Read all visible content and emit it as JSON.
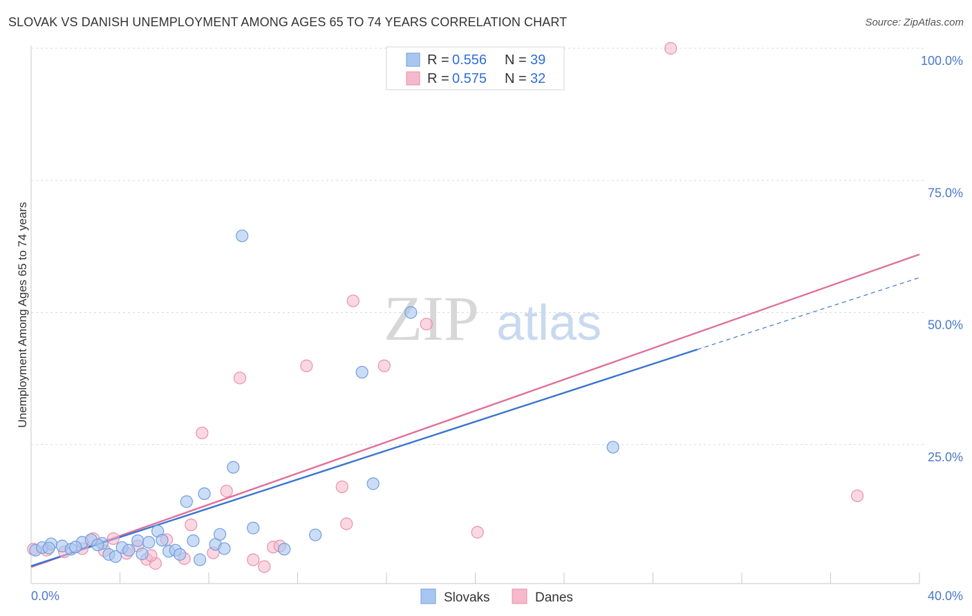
{
  "header": {
    "title": "SLOVAK VS DANISH UNEMPLOYMENT AMONG AGES 65 TO 74 YEARS CORRELATION CHART",
    "source": "Source: ZipAtlas.com"
  },
  "watermark": {
    "zip": "ZIP",
    "atlas": "atlas"
  },
  "colors": {
    "slovaks_fill": "#a9c6f0",
    "slovaks_stroke": "#6f9ddf",
    "slovaks_line": "#3a74d0",
    "danes_fill": "#f6b8cb",
    "danes_stroke": "#ea8fab",
    "danes_line": "#e0709a",
    "grid": "#d9d9d9",
    "tick_label": "#4a78c8"
  },
  "legend": {
    "rows": [
      {
        "r_label": "R =",
        "r_value": "0.556",
        "n_label": "N =",
        "n_value": "39"
      },
      {
        "r_label": "R =",
        "r_value": "0.575",
        "n_label": "N =",
        "n_value": "32"
      }
    ]
  },
  "chart_data": {
    "type": "scatter",
    "title": "SLOVAK VS DANISH UNEMPLOYMENT AMONG AGES 65 TO 74 YEARS CORRELATION CHART",
    "xlabel": "",
    "ylabel": "Unemployment Among Ages 65 to 74 years",
    "xlim": [
      0,
      40
    ],
    "ylim": [
      0,
      100
    ],
    "x_tick_labels": [
      "0.0%",
      "40.0%"
    ],
    "y_ticks": [
      25,
      50,
      75,
      100
    ],
    "y_tick_labels": [
      "25.0%",
      "50.0%",
      "75.0%",
      "100.0%"
    ],
    "grid": true,
    "legend_position": "top-center",
    "series": [
      {
        "name": "Slovaks",
        "r": 0.556,
        "n": 39,
        "trend": {
          "x0": 0,
          "y0": 2.0,
          "x1": 30,
          "y1": 43.0,
          "dashed_to_x": 40,
          "dashed_to_y": 56.6
        },
        "points": [
          [
            0.2,
            5.0
          ],
          [
            0.5,
            5.5
          ],
          [
            0.9,
            6.2
          ],
          [
            1.4,
            5.8
          ],
          [
            1.8,
            5.2
          ],
          [
            2.3,
            6.5
          ],
          [
            2.7,
            7.0
          ],
          [
            3.2,
            6.3
          ],
          [
            3.5,
            4.2
          ],
          [
            3.8,
            3.8
          ],
          [
            4.1,
            5.5
          ],
          [
            4.4,
            5.0
          ],
          [
            4.8,
            6.8
          ],
          [
            5.0,
            4.3
          ],
          [
            5.3,
            6.5
          ],
          [
            5.7,
            8.6
          ],
          [
            5.9,
            6.9
          ],
          [
            6.2,
            4.8
          ],
          [
            6.5,
            5.0
          ],
          [
            6.7,
            4.2
          ],
          [
            7.0,
            14.2
          ],
          [
            7.3,
            6.8
          ],
          [
            7.6,
            3.2
          ],
          [
            7.8,
            15.7
          ],
          [
            8.3,
            6.1
          ],
          [
            8.5,
            8.0
          ],
          [
            8.7,
            5.3
          ],
          [
            9.1,
            20.7
          ],
          [
            9.5,
            64.5
          ],
          [
            10.0,
            9.2
          ],
          [
            11.4,
            5.2
          ],
          [
            12.8,
            7.9
          ],
          [
            14.9,
            38.7
          ],
          [
            15.4,
            17.6
          ],
          [
            17.1,
            50.0
          ],
          [
            26.2,
            24.5
          ],
          [
            0.8,
            5.4
          ],
          [
            2.0,
            5.6
          ],
          [
            3.0,
            6.0
          ]
        ]
      },
      {
        "name": "Danes",
        "r": 0.575,
        "n": 32,
        "trend": {
          "x0": 0,
          "y0": 1.8,
          "x1": 40,
          "y1": 61.0
        },
        "points": [
          [
            0.1,
            5.2
          ],
          [
            0.7,
            5.0
          ],
          [
            1.5,
            4.7
          ],
          [
            2.3,
            5.3
          ],
          [
            2.8,
            7.2
          ],
          [
            3.3,
            4.9
          ],
          [
            3.7,
            7.2
          ],
          [
            4.3,
            4.4
          ],
          [
            4.8,
            5.8
          ],
          [
            5.2,
            3.3
          ],
          [
            5.6,
            2.5
          ],
          [
            6.1,
            7.0
          ],
          [
            6.9,
            3.4
          ],
          [
            7.2,
            9.8
          ],
          [
            7.7,
            27.2
          ],
          [
            8.2,
            4.5
          ],
          [
            8.8,
            16.2
          ],
          [
            9.4,
            37.6
          ],
          [
            10.0,
            3.2
          ],
          [
            10.5,
            1.9
          ],
          [
            10.9,
            5.6
          ],
          [
            11.2,
            5.8
          ],
          [
            12.4,
            39.9
          ],
          [
            14.0,
            17.0
          ],
          [
            14.2,
            10.0
          ],
          [
            14.5,
            52.2
          ],
          [
            15.9,
            39.9
          ],
          [
            17.8,
            47.8
          ],
          [
            20.1,
            8.4
          ],
          [
            28.8,
            100.0
          ],
          [
            37.2,
            15.3
          ],
          [
            5.4,
            4.0
          ]
        ]
      }
    ]
  },
  "bottom_legend": {
    "items": [
      {
        "label": "Slovaks"
      },
      {
        "label": "Danes"
      }
    ]
  }
}
